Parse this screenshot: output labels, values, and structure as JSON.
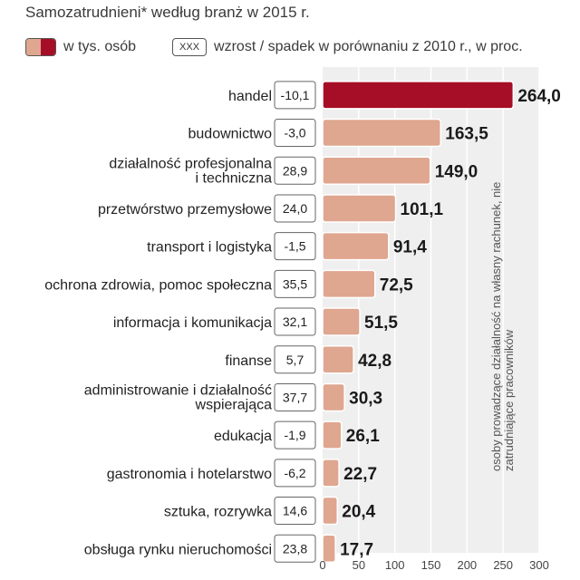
{
  "title": "Samozatrudnieni* według branż w 2015 r.",
  "legend": {
    "bar_label": "w tys. osób",
    "box_sample": "XXX",
    "box_label": "wzrost / spadek w porównaniu z 2010 r., w proc."
  },
  "side_note": "osoby prowadzące działalność na własny rachunek, nie zatrudniające pracowników",
  "colors": {
    "highlight": "#a50e26",
    "bar": "#dfa690",
    "bar_stroke": "#ffffff",
    "panel": "#efefef"
  },
  "chart_data": {
    "type": "bar",
    "orientation": "horizontal",
    "xlim": [
      0,
      300
    ],
    "xticks": [
      0,
      50,
      100,
      150,
      200,
      250,
      300
    ],
    "categories": [
      "handel",
      "budownictwo",
      "działalność profesjonalna|i techniczna",
      "przetwórstwo przemysłowe",
      "transport i logistyka",
      "ochrona zdrowia, pomoc społeczna",
      "informacja i komunikacja",
      "finanse",
      "administrowanie i działalność|wspierająca",
      "edukacja",
      "gastronomia i hotelarstwo",
      "sztuka, rozrywka",
      "obsługa rynku nieruchomości"
    ],
    "values": [
      264.0,
      163.5,
      149.0,
      101.1,
      91.4,
      72.5,
      51.5,
      42.8,
      30.3,
      26.1,
      22.7,
      20.4,
      17.7
    ],
    "value_labels": [
      "264,0",
      "163,5",
      "149,0",
      "101,1",
      "91,4",
      "72,5",
      "51,5",
      "42,8",
      "30,3",
      "26,1",
      "22,7",
      "20,4",
      "17,7"
    ],
    "change_pct_labels": [
      "-10,1",
      "-3,0",
      "28,9",
      "24,0",
      "-1,5",
      "35,5",
      "32,1",
      "5,7",
      "37,7",
      "-1,9",
      "-6,2",
      "14,6",
      "23,8"
    ],
    "highlight_index": 0
  }
}
